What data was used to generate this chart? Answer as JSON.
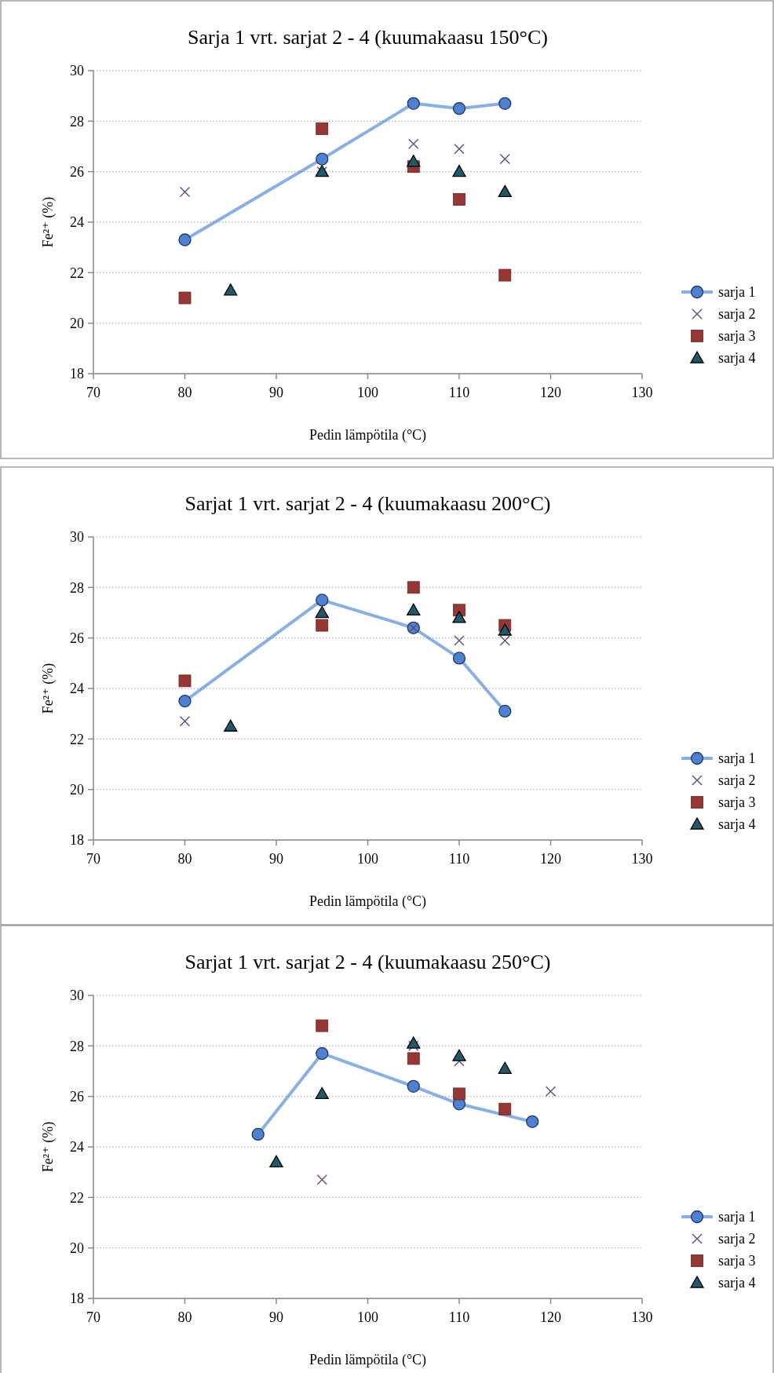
{
  "chart_data": [
    {
      "type": "scatter",
      "title": "Sarja 1 vrt. sarjat 2 - 4 (kuumakaasu 150°C)",
      "xlabel": "Pedin lämpötila (°C)",
      "ylabel": "Fe²⁺ (%)",
      "xlim": [
        70,
        130
      ],
      "xticks": [
        70,
        80,
        90,
        100,
        110,
        120,
        130
      ],
      "ylim": [
        18,
        30
      ],
      "yticks": [
        18,
        20,
        22,
        24,
        26,
        28,
        30
      ],
      "grid": "y",
      "legend": "right",
      "series": [
        {
          "name": "sarja 1",
          "type": "line",
          "marker": "circle",
          "color": "#558ed5",
          "x": [
            80,
            95,
            105,
            110,
            115
          ],
          "values": [
            23.3,
            26.5,
            28.7,
            28.5,
            28.7
          ]
        },
        {
          "name": "sarja 2",
          "marker": "cross",
          "color": "#604a7b",
          "x": [
            80,
            95,
            105,
            110,
            115
          ],
          "values": [
            25.2,
            26.0,
            27.1,
            26.9,
            26.5
          ]
        },
        {
          "name": "sarja 3",
          "marker": "square",
          "color": "#953735",
          "x": [
            80,
            95,
            105,
            110,
            115
          ],
          "values": [
            21.0,
            27.7,
            26.2,
            24.9,
            21.9
          ]
        },
        {
          "name": "sarja 4",
          "marker": "triangle",
          "color": "#215968",
          "x": [
            85,
            95,
            105,
            110,
            115
          ],
          "values": [
            21.3,
            26.0,
            26.4,
            26.0,
            25.2
          ]
        }
      ]
    },
    {
      "type": "scatter",
      "title": "Sarjat 1 vrt. sarjat 2 - 4 (kuumakaasu 200°C)",
      "xlabel": "Pedin lämpötila (°C)",
      "ylabel": "Fe²⁺ (%)",
      "xlim": [
        70,
        130
      ],
      "xticks": [
        70,
        80,
        90,
        100,
        110,
        120,
        130
      ],
      "ylim": [
        18,
        30
      ],
      "yticks": [
        18,
        20,
        22,
        24,
        26,
        28,
        30
      ],
      "grid": "y",
      "legend": "right",
      "series": [
        {
          "name": "sarja 1",
          "type": "line",
          "marker": "circle",
          "color": "#558ed5",
          "x": [
            80,
            95,
            105,
            110,
            115
          ],
          "values": [
            23.5,
            27.5,
            26.4,
            25.2,
            23.1
          ]
        },
        {
          "name": "sarja 2",
          "marker": "cross",
          "color": "#604a7b",
          "x": [
            80,
            105,
            110,
            115
          ],
          "values": [
            22.7,
            26.4,
            25.9,
            25.9
          ]
        },
        {
          "name": "sarja 3",
          "marker": "square",
          "color": "#953735",
          "x": [
            80,
            95,
            105,
            110,
            115
          ],
          "values": [
            24.3,
            26.5,
            28.0,
            27.1,
            26.5
          ]
        },
        {
          "name": "sarja 4",
          "marker": "triangle",
          "color": "#215968",
          "x": [
            85,
            95,
            105,
            110,
            115
          ],
          "values": [
            22.5,
            27.0,
            27.1,
            26.8,
            26.3
          ]
        }
      ]
    },
    {
      "type": "scatter",
      "title": "Sarjat 1 vrt. sarjat 2 - 4 (kuumakaasu 250°C)",
      "xlabel": "Pedin lämpötila (°C)",
      "ylabel": "Fe²⁺ (%)",
      "xlim": [
        70,
        130
      ],
      "xticks": [
        70,
        80,
        90,
        100,
        110,
        120,
        130
      ],
      "ylim": [
        18,
        30
      ],
      "yticks": [
        18,
        20,
        22,
        24,
        26,
        28,
        30
      ],
      "grid": "y",
      "legend": "right",
      "series": [
        {
          "name": "sarja 1",
          "type": "line",
          "marker": "circle",
          "color": "#558ed5",
          "x": [
            88,
            95,
            105,
            110,
            118
          ],
          "values": [
            24.5,
            27.7,
            26.4,
            25.7,
            25.0
          ]
        },
        {
          "name": "sarja 2",
          "marker": "cross",
          "color": "#604a7b",
          "x": [
            95,
            105,
            110,
            120
          ],
          "values": [
            22.7,
            28.0,
            27.4,
            26.2
          ]
        },
        {
          "name": "sarja 3",
          "marker": "square",
          "color": "#953735",
          "x": [
            95,
            105,
            110,
            115
          ],
          "values": [
            28.8,
            27.5,
            26.1,
            25.5
          ]
        },
        {
          "name": "sarja 4",
          "marker": "triangle",
          "color": "#215968",
          "x": [
            90,
            95,
            105,
            110,
            115
          ],
          "values": [
            23.4,
            26.1,
            28.1,
            27.6,
            27.1
          ]
        }
      ]
    }
  ]
}
